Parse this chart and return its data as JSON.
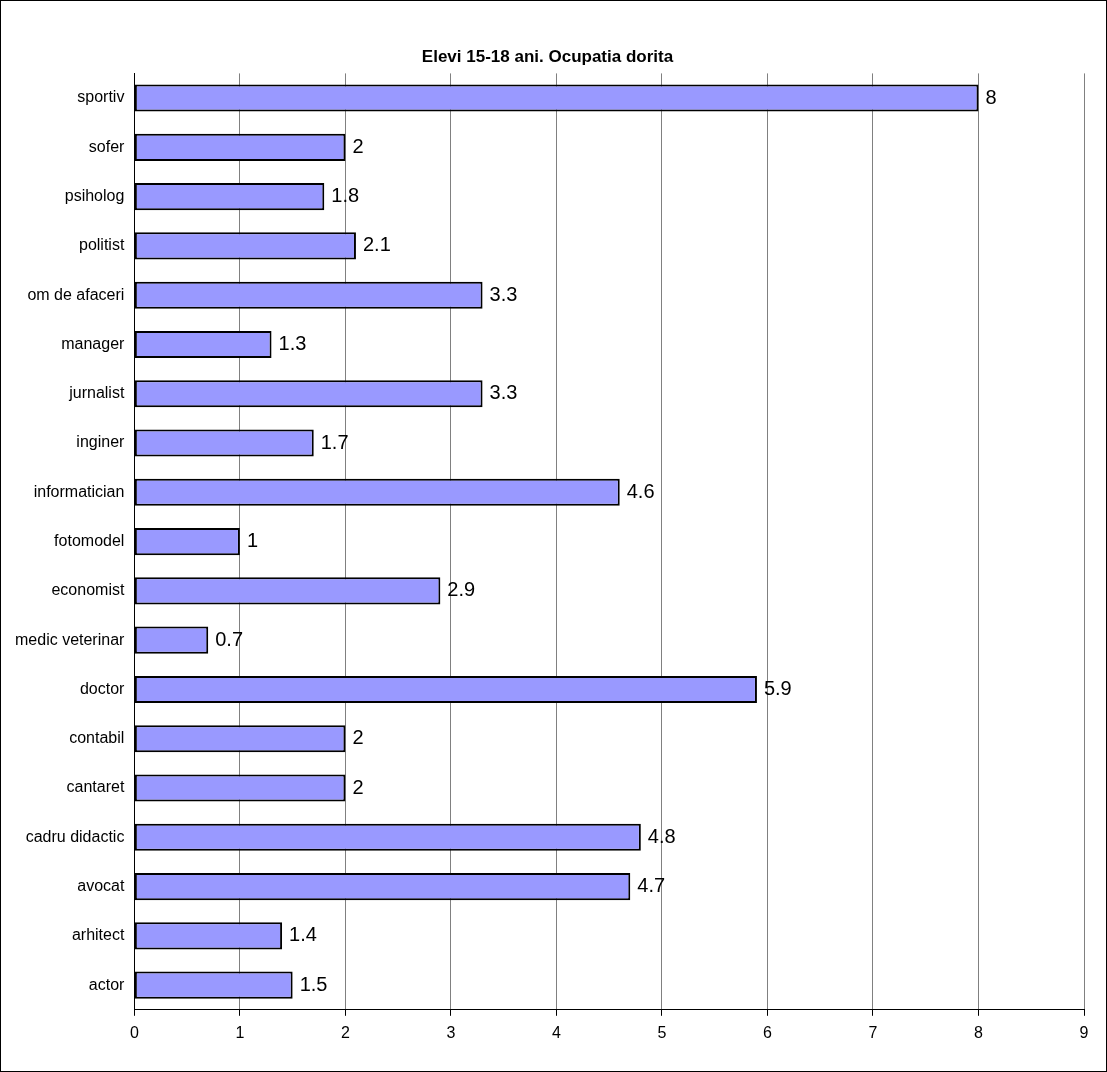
{
  "chart_data": {
    "type": "bar",
    "orientation": "horizontal",
    "title": "Elevi 15-18 ani. Ocupatia dorita",
    "categories": [
      "sportiv",
      "sofer",
      "psiholog",
      "politist",
      "om de afaceri",
      "manager",
      "jurnalist",
      "inginer",
      "informatician",
      "fotomodel",
      "economist",
      "medic veterinar",
      "doctor",
      "contabil",
      "cantaret",
      "cadru didactic",
      "avocat",
      "arhitect",
      "actor"
    ],
    "values": [
      8,
      2,
      1.8,
      2.1,
      3.3,
      1.3,
      3.3,
      1.7,
      4.6,
      1,
      2.9,
      0.7,
      5.9,
      2,
      2,
      4.8,
      4.7,
      1.4,
      1.5
    ],
    "color": "#9999ff",
    "xlim": [
      0,
      9
    ],
    "xticks": [
      0,
      1,
      2,
      3,
      4,
      5,
      6,
      7,
      8,
      9
    ],
    "grid": "x",
    "legend": false,
    "data_labels": true
  }
}
